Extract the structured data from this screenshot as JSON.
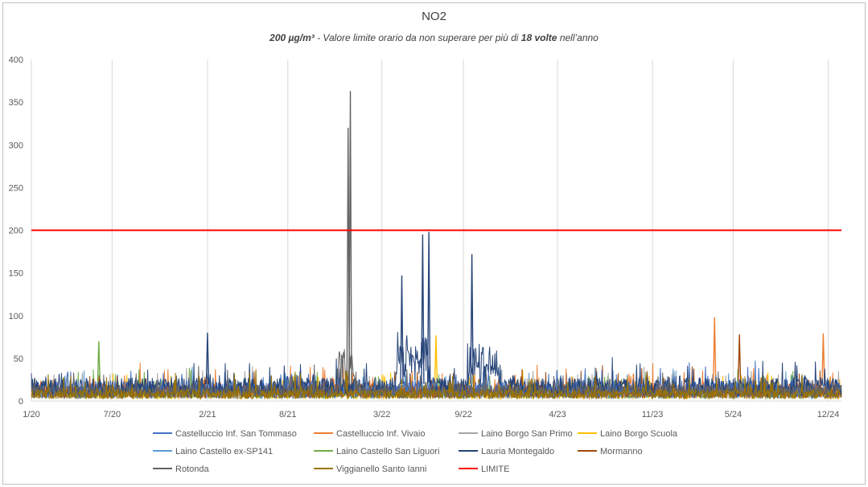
{
  "chart_data": {
    "type": "line",
    "title": "NO2",
    "subtitle": {
      "part1": "200 µg/m³",
      "part2": " - Valore limite orario da non superare per più di ",
      "part3": "18 volte",
      "part4": " nell’anno"
    },
    "ylim": [
      0,
      400
    ],
    "yticks": [
      0,
      50,
      100,
      150,
      200,
      250,
      300,
      350,
      400
    ],
    "xticks": [
      "1/20",
      "7/20",
      "2/21",
      "8/21",
      "3/22",
      "9/22",
      "4/23",
      "11/23",
      "5/24",
      "12/24"
    ],
    "x_range": [
      "2020-01-01",
      "2024-12-31"
    ],
    "grid": "vertical at x ticks",
    "legend_position": "bottom",
    "limit_value": 200,
    "series": [
      {
        "name": "Castelluccio Inf. San Tommaso",
        "color": "#4472c4"
      },
      {
        "name": "Castelluccio Inf. Vivaio",
        "color": "#ed7d31"
      },
      {
        "name": "Laino Borgo San Primo",
        "color": "#a5a5a5"
      },
      {
        "name": "Laino Borgo Scuola",
        "color": "#ffc000"
      },
      {
        "name": "Laino Castello ex-SP141",
        "color": "#5b9bd5"
      },
      {
        "name": "Laino Castello San Liguori",
        "color": "#70ad47"
      },
      {
        "name": "Lauria Montegaldo",
        "color": "#264478"
      },
      {
        "name": "Mormanno",
        "color": "#9e480e"
      },
      {
        "name": "Rotonda",
        "color": "#636363"
      },
      {
        "name": "Viggianello Santo Ianni",
        "color": "#997300"
      },
      {
        "name": "LIMITE",
        "color": "#ff0000"
      }
    ],
    "peaks": [
      {
        "series": "Rotonda",
        "date": "2021-12-20",
        "value": 363
      },
      {
        "series": "Rotonda",
        "date": "2021-12-15",
        "value": 320
      },
      {
        "series": "Lauria Montegaldo",
        "date": "2022-06-15",
        "value": 198
      },
      {
        "series": "Lauria Montegaldo",
        "date": "2022-06-01",
        "value": 195
      },
      {
        "series": "Lauria Montegaldo",
        "date": "2022-04-15",
        "value": 147
      },
      {
        "series": "Lauria Montegaldo",
        "date": "2022-09-20",
        "value": 172
      },
      {
        "series": "Castelluccio Inf. Vivaio",
        "date": "2024-03-20",
        "value": 98
      },
      {
        "series": "Mormanno",
        "date": "2024-05-15",
        "value": 78
      },
      {
        "series": "Laino Borgo Scuola",
        "date": "2022-07-01",
        "value": 77
      },
      {
        "series": "Lauria Montegaldo",
        "date": "2021-02-01",
        "value": 80
      },
      {
        "series": "Laino Castello San Liguori",
        "date": "2020-06-01",
        "value": 70
      },
      {
        "series": "Castelluccio Inf. Vivaio",
        "date": "2024-11-20",
        "value": 79
      }
    ]
  }
}
